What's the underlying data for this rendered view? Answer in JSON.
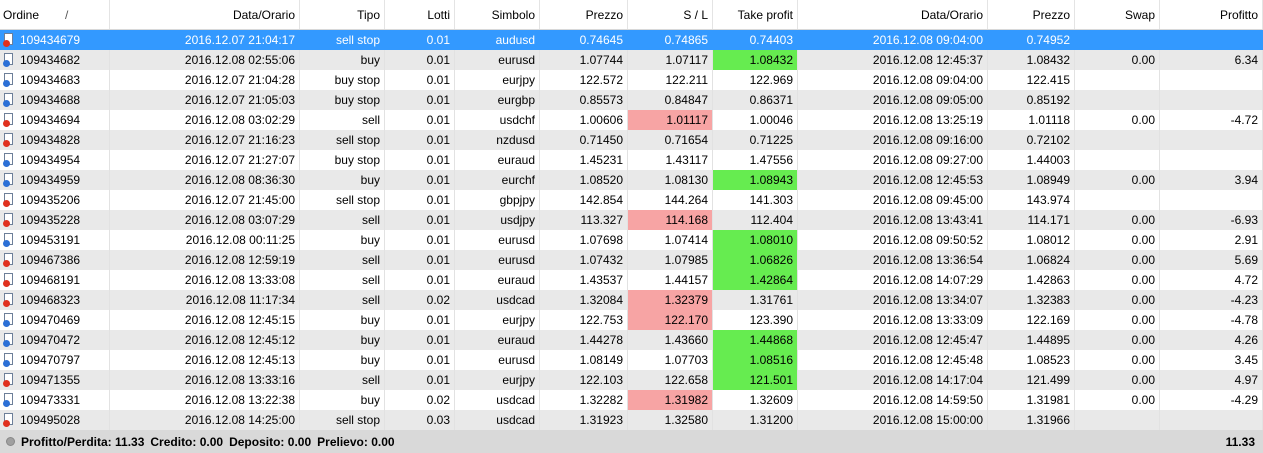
{
  "header": {
    "columns": [
      "Ordine",
      "Data/Orario",
      "Tipo",
      "Lotti",
      "Simbolo",
      "Prezzo",
      "S / L",
      "Take profit",
      "Data/Orario",
      "Prezzo",
      "Swap",
      "Profitto"
    ],
    "sort_indicator": "/"
  },
  "cell_colors": {
    "sl": "#f7a4a4",
    "tp": "#66ec50"
  },
  "table": {
    "rows": [
      {
        "cells": [
          "109434679",
          "2016.12.07 21:04:17",
          "sell stop",
          "0.01",
          "audusd",
          "0.74645",
          "0.74865",
          "0.74403",
          "2016.12.08 09:04:00",
          "0.74952",
          "",
          ""
        ],
        "selected": true
      },
      {
        "cells": [
          "109434682",
          "2016.12.08 02:55:06",
          "buy",
          "0.01",
          "eurusd",
          "1.07744",
          "1.07117",
          "1.08432",
          "2016.12.08 12:45:37",
          "1.08432",
          "0.00",
          "6.34"
        ],
        "hit": "tp"
      },
      {
        "cells": [
          "109434683",
          "2016.12.07 21:04:28",
          "buy stop",
          "0.01",
          "eurjpy",
          "122.572",
          "122.211",
          "122.969",
          "2016.12.08 09:04:00",
          "122.415",
          "",
          ""
        ]
      },
      {
        "cells": [
          "109434688",
          "2016.12.07 21:05:03",
          "buy stop",
          "0.01",
          "eurgbp",
          "0.85573",
          "0.84847",
          "0.86371",
          "2016.12.08 09:05:00",
          "0.85192",
          "",
          ""
        ]
      },
      {
        "cells": [
          "109434694",
          "2016.12.08 03:02:29",
          "sell",
          "0.01",
          "usdchf",
          "1.00606",
          "1.01117",
          "1.00046",
          "2016.12.08 13:25:19",
          "1.01118",
          "0.00",
          "-4.72"
        ],
        "hit": "sl"
      },
      {
        "cells": [
          "109434828",
          "2016.12.07 21:16:23",
          "sell stop",
          "0.01",
          "nzdusd",
          "0.71450",
          "0.71654",
          "0.71225",
          "2016.12.08 09:16:00",
          "0.72102",
          "",
          ""
        ]
      },
      {
        "cells": [
          "109434954",
          "2016.12.07 21:27:07",
          "buy stop",
          "0.01",
          "euraud",
          "1.45231",
          "1.43117",
          "1.47556",
          "2016.12.08 09:27:00",
          "1.44003",
          "",
          ""
        ]
      },
      {
        "cells": [
          "109434959",
          "2016.12.08 08:36:30",
          "buy",
          "0.01",
          "eurchf",
          "1.08520",
          "1.08130",
          "1.08943",
          "2016.12.08 12:45:53",
          "1.08949",
          "0.00",
          "3.94"
        ],
        "hit": "tp"
      },
      {
        "cells": [
          "109435206",
          "2016.12.07 21:45:00",
          "sell stop",
          "0.01",
          "gbpjpy",
          "142.854",
          "144.264",
          "141.303",
          "2016.12.08 09:45:00",
          "143.974",
          "",
          ""
        ]
      },
      {
        "cells": [
          "109435228",
          "2016.12.08 03:07:29",
          "sell",
          "0.01",
          "usdjpy",
          "113.327",
          "114.168",
          "112.404",
          "2016.12.08 13:43:41",
          "114.171",
          "0.00",
          "-6.93"
        ],
        "hit": "sl"
      },
      {
        "cells": [
          "109453191",
          "2016.12.08 00:11:25",
          "buy",
          "0.01",
          "eurusd",
          "1.07698",
          "1.07414",
          "1.08010",
          "2016.12.08 09:50:52",
          "1.08012",
          "0.00",
          "2.91"
        ],
        "hit": "tp"
      },
      {
        "cells": [
          "109467386",
          "2016.12.08 12:59:19",
          "sell",
          "0.01",
          "eurusd",
          "1.07432",
          "1.07985",
          "1.06826",
          "2016.12.08 13:36:54",
          "1.06824",
          "0.00",
          "5.69"
        ],
        "hit": "tp"
      },
      {
        "cells": [
          "109468191",
          "2016.12.08 13:33:08",
          "sell",
          "0.01",
          "euraud",
          "1.43537",
          "1.44157",
          "1.42864",
          "2016.12.08 14:07:29",
          "1.42863",
          "0.00",
          "4.72"
        ],
        "hit": "tp"
      },
      {
        "cells": [
          "109468323",
          "2016.12.08 11:17:34",
          "sell",
          "0.02",
          "usdcad",
          "1.32084",
          "1.32379",
          "1.31761",
          "2016.12.08 13:34:07",
          "1.32383",
          "0.00",
          "-4.23"
        ],
        "hit": "sl"
      },
      {
        "cells": [
          "109470469",
          "2016.12.08 12:45:15",
          "buy",
          "0.01",
          "eurjpy",
          "122.753",
          "122.170",
          "123.390",
          "2016.12.08 13:33:09",
          "122.169",
          "0.00",
          "-4.78"
        ],
        "hit": "sl"
      },
      {
        "cells": [
          "109470472",
          "2016.12.08 12:45:12",
          "buy",
          "0.01",
          "euraud",
          "1.44278",
          "1.43660",
          "1.44868",
          "2016.12.08 12:45:47",
          "1.44895",
          "0.00",
          "4.26"
        ],
        "hit": "tp"
      },
      {
        "cells": [
          "109470797",
          "2016.12.08 12:45:13",
          "buy",
          "0.01",
          "eurusd",
          "1.08149",
          "1.07703",
          "1.08516",
          "2016.12.08 12:45:48",
          "1.08523",
          "0.00",
          "3.45"
        ],
        "hit": "tp"
      },
      {
        "cells": [
          "109471355",
          "2016.12.08 13:33:16",
          "sell",
          "0.01",
          "eurjpy",
          "122.103",
          "122.658",
          "121.501",
          "2016.12.08 14:17:04",
          "121.499",
          "0.00",
          "4.97"
        ],
        "hit": "tp"
      },
      {
        "cells": [
          "109473331",
          "2016.12.08 13:22:38",
          "buy",
          "0.02",
          "usdcad",
          "1.32282",
          "1.31982",
          "1.32609",
          "2016.12.08 14:59:50",
          "1.31981",
          "0.00",
          "-4.29"
        ],
        "hit": "sl"
      },
      {
        "cells": [
          "109495028",
          "2016.12.08 14:25:00",
          "sell stop",
          "0.03",
          "usdcad",
          "1.31923",
          "1.32580",
          "1.31200",
          "2016.12.08 15:00:00",
          "1.31966",
          "",
          ""
        ]
      }
    ]
  },
  "footer": {
    "items": [
      {
        "label": "Profitto/Perdita:",
        "value": "11.33"
      },
      {
        "label": "Credito:",
        "value": "0.00"
      },
      {
        "label": "Deposito:",
        "value": "0.00"
      },
      {
        "label": "Prelievo:",
        "value": "0.00"
      }
    ],
    "total": "11.33"
  }
}
